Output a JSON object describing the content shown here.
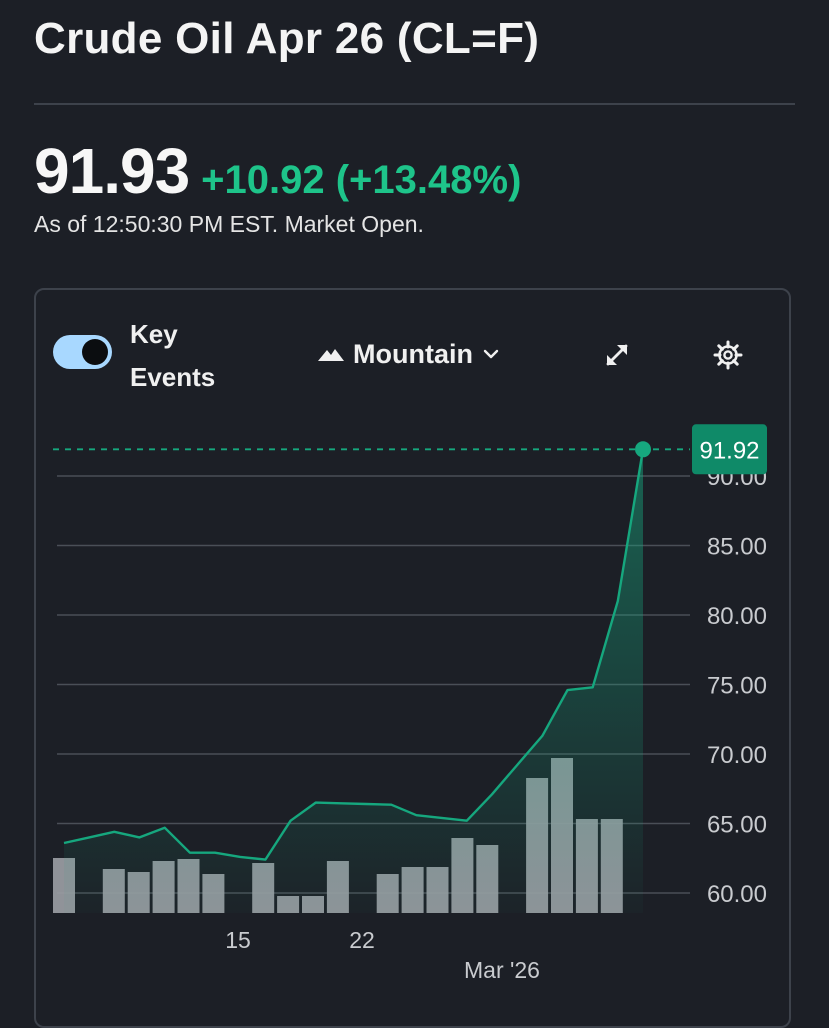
{
  "header": {
    "title": "Crude Oil Apr 26 (CL=F)",
    "price": "91.93",
    "change": "+10.92 (+13.48%)",
    "as_of": "As of 12:50:30 PM EST. Market Open."
  },
  "toolbar": {
    "key_events_label": "Key Events",
    "key_events_on": true,
    "chart_type_label": "Mountain",
    "icons": [
      "mountain-icon",
      "chevron-down-icon",
      "expand-icon",
      "gear-icon"
    ]
  },
  "colors": {
    "background": "#1c1f26",
    "accent_green": "#1ec48a",
    "line_green": "#16a77e",
    "price_badge": "#0f8a68",
    "volume_bar": "#9a9da3",
    "gridline": "#4a4f57"
  },
  "chart_data": {
    "type": "area",
    "current_price_label": "91.92",
    "y_ticks": [
      "60.00",
      "65.00",
      "70.00",
      "75.00",
      "80.00",
      "85.00",
      "90.00"
    ],
    "ylim": [
      58.7,
      91.92
    ],
    "x_tick_labels": [
      "15",
      "22",
      "Mar '26"
    ],
    "series": [
      {
        "values": [
          63.6,
          64.0,
          64.4,
          64.0,
          64.7,
          62.9,
          62.9,
          62.6,
          62.4,
          65.2,
          66.5,
          66.45,
          66.4,
          66.35,
          65.6,
          65.4,
          65.2,
          67.1,
          69.2,
          71.3,
          74.6,
          74.8,
          81.0,
          91.92
        ]
      }
    ],
    "volume_relative": [
      0.55,
      0,
      0.44,
      0.41,
      0.52,
      0.54,
      0.39,
      0,
      0.5,
      0.17,
      0.17,
      0.52,
      0,
      0.39,
      0.46,
      0.46,
      0.75,
      0.68,
      0,
      1.35,
      1.55,
      0.94,
      0.94
    ]
  }
}
